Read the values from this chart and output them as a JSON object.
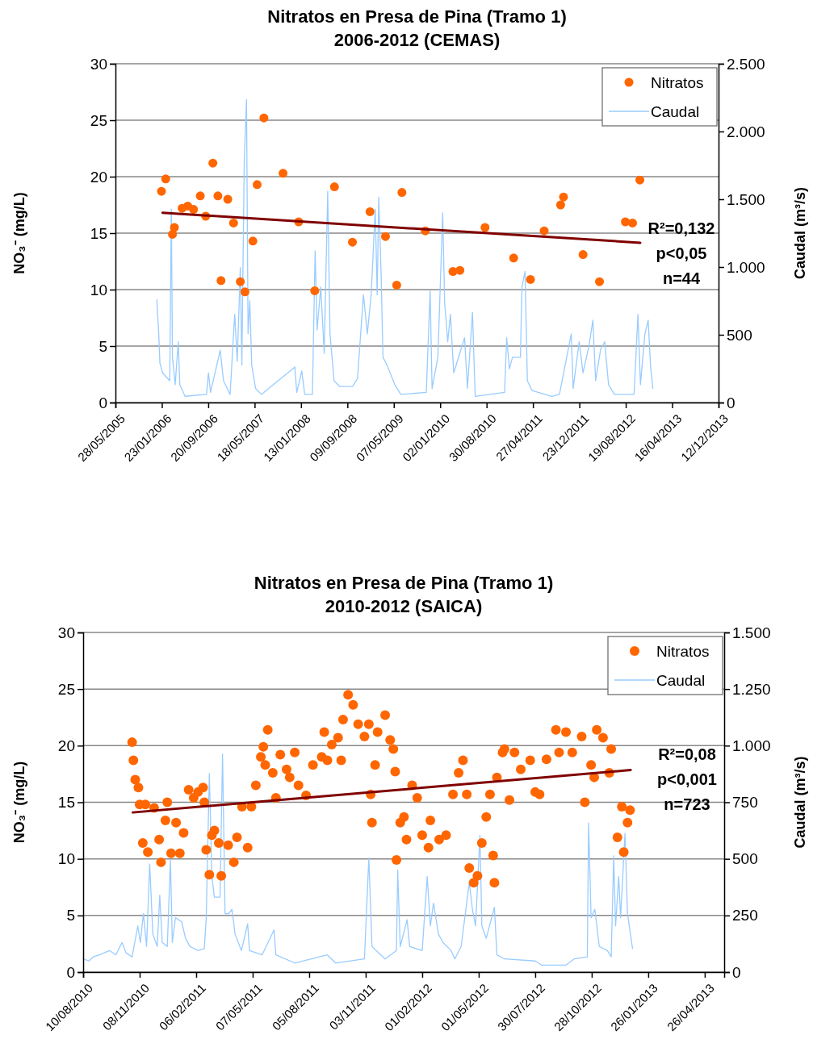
{
  "chart_data": [
    {
      "type": "scatter",
      "title": "Nitratos en Presa de Pina (Tramo 1)",
      "subtitle": "2006-2012 (CEMAS)",
      "ylabel": "NO₃⁻ (mg/L)",
      "y2label": "Caudal (m³/s)",
      "annotations": [
        "R²=0,132",
        "p<0,05",
        "n=44"
      ],
      "xlim": [
        "2005-05-28",
        "2013-12-12"
      ],
      "xticks": [
        {
          "value": "2005-05-28",
          "label": "28/05/2005"
        },
        {
          "value": "2006-01-23",
          "label": "23/01/2006"
        },
        {
          "value": "2006-09-20",
          "label": "20/09/2006"
        },
        {
          "value": "2007-05-18",
          "label": "18/05/2007"
        },
        {
          "value": "2008-01-13",
          "label": "13/01/2008"
        },
        {
          "value": "2008-09-09",
          "label": "09/09/2008"
        },
        {
          "value": "2009-05-07",
          "label": "07/05/2009"
        },
        {
          "value": "2010-01-02",
          "label": "02/01/2010"
        },
        {
          "value": "2010-08-30",
          "label": "30/08/2010"
        },
        {
          "value": "2011-04-27",
          "label": "27/04/2011"
        },
        {
          "value": "2011-12-23",
          "label": "23/12/2011"
        },
        {
          "value": "2012-08-19",
          "label": "19/08/2012"
        },
        {
          "value": "2013-04-16",
          "label": "16/04/2013"
        },
        {
          "value": "2013-12-12",
          "label": "12/12/2013"
        }
      ],
      "ylim": [
        0,
        30
      ],
      "yticks": [
        0,
        5,
        10,
        15,
        20,
        25,
        30
      ],
      "y2lim": [
        0,
        2500
      ],
      "y2ticks": [
        0,
        500,
        {
          "value": 1000,
          "label": "1.000"
        },
        {
          "value": 1500,
          "label": "1.500"
        },
        {
          "value": 2000,
          "label": "2.000"
        },
        {
          "value": 2500,
          "label": "2.500"
        }
      ],
      "grid": "y",
      "legend": "top right",
      "series": [
        {
          "name": "Nitratos",
          "color": "#ff6600",
          "marker": "circle",
          "x": [
            "2006-01-21",
            "2006-02-12",
            "2006-03-29",
            "2006-03-19",
            "2006-05-08",
            "2006-06-06",
            "2006-07-06",
            "2006-08-10",
            "2006-09-07",
            "2006-10-14",
            "2006-11-09",
            "2006-11-25",
            "2006-12-30",
            "2007-01-29",
            "2007-03-05",
            "2007-03-29",
            "2007-05-09",
            "2007-05-31",
            "2007-07-05",
            "2007-10-12",
            "2008-01-01",
            "2008-03-24",
            "2008-07-04",
            "2008-10-05",
            "2009-01-04",
            "2009-03-25",
            "2009-05-22",
            "2009-06-18",
            "2009-10-17",
            "2010-03-09",
            "2010-04-14",
            "2010-08-22",
            "2011-01-17",
            "2011-04-14",
            "2011-06-24",
            "2011-09-17",
            "2011-10-02",
            "2012-01-11",
            "2012-04-05",
            "2012-08-17",
            "2012-09-23",
            "2012-10-31"
          ],
          "values": [
            18.7,
            19.8,
            15.5,
            14.9,
            17.2,
            17.4,
            17.1,
            18.3,
            16.5,
            21.2,
            18.3,
            10.8,
            18.0,
            15.9,
            10.7,
            9.8,
            14.3,
            19.3,
            25.2,
            20.3,
            16.0,
            9.9,
            19.1,
            14.2,
            16.9,
            14.7,
            10.4,
            18.6,
            15.2,
            11.6,
            11.7,
            15.5,
            12.8,
            10.9,
            15.2,
            17.5,
            18.2,
            13.1,
            10.7,
            16.0,
            15.9,
            19.7
          ]
        },
        {
          "name": "Caudal",
          "type": "line",
          "axis": "y2",
          "color": "#99ccff",
          "line_style": "solid",
          "x": [
            "2005-12-28",
            "2006-01-07",
            "2006-01-13",
            "2006-01-27",
            "2006-03-05",
            "2006-03-13",
            "2006-03-19",
            "2006-04-02",
            "2006-04-18",
            "2006-04-26",
            "2006-05-23",
            "2006-09-11",
            "2006-09-21",
            "2006-10-02",
            "2006-11-21",
            "2006-12-08",
            "2007-01-11",
            "2007-02-04",
            "2007-02-17",
            "2007-03-05",
            "2007-03-13",
            "2007-03-25",
            "2007-04-06",
            "2007-04-14",
            "2007-04-23",
            "2007-05-03",
            "2007-05-23",
            "2007-06-22",
            "2007-12-12",
            "2007-12-22",
            "2008-01-17",
            "2008-02-01",
            "2008-03-12",
            "2008-03-26",
            "2008-04-05",
            "2008-04-24",
            "2008-05-12",
            "2008-05-30",
            "2008-06-11",
            "2008-07-02",
            "2008-08-01",
            "2008-10-05",
            "2008-10-31",
            "2008-12-01",
            "2008-12-21",
            "2009-01-10",
            "2009-01-31",
            "2009-02-10",
            "2009-02-18",
            "2009-03-02",
            "2009-03-12",
            "2009-04-02",
            "2009-05-12",
            "2009-06-12",
            "2009-10-22",
            "2009-11-11",
            "2009-11-21",
            "2009-12-21",
            "2010-01-15",
            "2010-01-25",
            "2010-02-10",
            "2010-02-24",
            "2010-03-13",
            "2010-05-08",
            "2010-05-23",
            "2010-06-18",
            "2010-07-02",
            "2010-12-01",
            "2010-12-12",
            "2010-12-26",
            "2011-01-11",
            "2011-02-21",
            "2011-03-01",
            "2011-03-17",
            "2011-03-29",
            "2011-04-22",
            "2011-08-02",
            "2011-09-11",
            "2011-11-11",
            "2011-11-21",
            "2011-12-22",
            "2012-01-11",
            "2012-02-11",
            "2012-03-02",
            "2012-03-16",
            "2012-04-11",
            "2012-05-02",
            "2012-05-22",
            "2012-06-21",
            "2012-10-01",
            "2012-10-21",
            "2012-11-03",
            "2012-11-26",
            "2012-12-13",
            "2012-12-25",
            "2013-01-06"
          ],
          "values": [
            760,
            507,
            291,
            219,
            161,
            1428,
            334,
            132,
            449,
            132,
            46,
            60,
            219,
            75,
            386,
            161,
            60,
            651,
            305,
            996,
            276,
            1760,
            2235,
            507,
            752,
            276,
            104,
            60,
            262,
            75,
            233,
            60,
            60,
            1120,
            536,
            852,
            363,
            1558,
            507,
            161,
            118,
            118,
            176,
            795,
            507,
            795,
            1428,
            795,
            1515,
            968,
            334,
            276,
            132,
            60,
            75,
            824,
            104,
            334,
            1400,
            737,
            449,
            651,
            219,
            478,
            104,
            665,
            46,
            75,
            478,
            248,
            334,
            334,
            852,
            968,
            161,
            89,
            46,
            60,
            507,
            104,
            449,
            219,
            420,
            608,
            161,
            392,
            449,
            132,
            60,
            60,
            651,
            132,
            507,
            608,
            276,
            104
          ]
        },
        {
          "type": "line",
          "color": "#800000",
          "line_style": "solid",
          "x": [
            "2006-01-27",
            "2012-11-02"
          ],
          "values": [
            16.8,
            14.15
          ]
        }
      ]
    },
    {
      "type": "scatter",
      "title": "Nitratos en Presa de Pina (Tramo 1)",
      "subtitle": "2010-2012 (SAICA)",
      "ylabel": "NO₃⁻ (mg/L)",
      "y2label": "Caudal (m³/s)",
      "annotations": [
        "R²=0,08",
        "p<0,001",
        "n=723"
      ],
      "xlim": [
        "2010-08-10",
        "2013-05-27"
      ],
      "xticks": [
        {
          "value": "2010-08-10",
          "label": "10/08/2010"
        },
        {
          "value": "2010-11-08",
          "label": "08/11/2010"
        },
        {
          "value": "2011-02-06",
          "label": "06/02/2011"
        },
        {
          "value": "2011-05-07",
          "label": "07/05/2011"
        },
        {
          "value": "2011-08-05",
          "label": "05/08/2011"
        },
        {
          "value": "2011-11-03",
          "label": "03/11/2011"
        },
        {
          "value": "2012-02-01",
          "label": "01/02/2012"
        },
        {
          "value": "2012-05-01",
          "label": "01/05/2012"
        },
        {
          "value": "2012-07-30",
          "label": "30/07/2012"
        },
        {
          "value": "2012-10-28",
          "label": "28/10/2012"
        },
        {
          "value": "2013-01-26",
          "label": "26/01/2013"
        },
        {
          "value": "2013-04-26",
          "label": "26/04/2013"
        }
      ],
      "ylim": [
        0,
        30
      ],
      "yticks": [
        0,
        5,
        10,
        15,
        20,
        25,
        30
      ],
      "y2lim": [
        0,
        1500
      ],
      "y2ticks": [
        0,
        250,
        500,
        750,
        {
          "value": 1000,
          "label": "1.000"
        },
        {
          "value": 1250,
          "label": "1.250"
        },
        {
          "value": 1500,
          "label": "1.500"
        }
      ],
      "grid": "y",
      "legend": "top right",
      "series": [
        {
          "name": "Nitratos",
          "color": "#ff6600",
          "marker": "circle",
          "x": [
            "2010-10-27",
            "2010-10-29",
            "2010-11-01",
            "2010-11-06",
            "2010-11-08",
            "2010-11-13",
            "2010-11-17",
            "2010-11-21",
            "2010-12-01",
            "2010-12-09",
            "2010-12-12",
            "2010-12-19",
            "2010-12-22",
            "2010-12-28",
            "2011-01-05",
            "2011-01-11",
            "2011-01-17",
            "2011-01-25",
            "2011-02-02",
            "2011-02-09",
            "2011-02-17",
            "2011-02-19",
            "2011-02-22",
            "2011-02-27",
            "2011-03-03",
            "2011-03-07",
            "2011-03-14",
            "2011-03-18",
            "2011-03-29",
            "2011-04-07",
            "2011-04-12",
            "2011-04-20",
            "2011-04-29",
            "2011-05-05",
            "2011-05-12",
            "2011-05-20",
            "2011-05-24",
            "2011-05-27",
            "2011-05-31",
            "2011-06-08",
            "2011-06-13",
            "2011-06-20",
            "2011-06-30",
            "2011-07-05",
            "2011-07-13",
            "2011-07-19",
            "2011-07-31",
            "2011-08-11",
            "2011-08-25",
            "2011-08-29",
            "2011-09-03",
            "2011-09-10",
            "2011-09-20",
            "2011-09-25",
            "2011-09-28",
            "2011-10-06",
            "2011-10-14",
            "2011-10-22",
            "2011-11-01",
            "2011-11-08",
            "2011-11-11",
            "2011-11-13",
            "2011-11-18",
            "2011-11-22",
            "2011-12-04",
            "2011-12-12",
            "2011-12-17",
            "2011-12-20",
            "2011-12-22",
            "2011-12-28",
            "2012-01-03",
            "2012-01-07",
            "2012-01-16",
            "2012-01-24",
            "2012-02-01",
            "2012-02-11",
            "2012-02-14",
            "2012-02-28",
            "2012-03-10",
            "2012-03-21",
            "2012-03-30",
            "2012-04-06",
            "2012-04-12",
            "2012-04-16",
            "2012-04-23",
            "2012-04-29",
            "2012-05-06",
            "2012-05-13",
            "2012-05-19",
            "2012-05-24",
            "2012-05-26",
            "2012-05-30",
            "2012-06-08",
            "2012-06-11",
            "2012-06-19",
            "2012-06-27",
            "2012-07-07",
            "2012-07-22",
            "2012-07-30",
            "2012-08-06",
            "2012-08-17",
            "2012-09-01",
            "2012-09-06",
            "2012-09-17",
            "2012-09-27",
            "2012-10-12",
            "2012-10-17",
            "2012-10-27",
            "2012-11-01",
            "2012-11-05",
            "2012-11-15",
            "2012-11-25",
            "2012-11-28",
            "2012-12-08",
            "2012-12-15",
            "2012-12-18",
            "2012-12-24",
            "2012-12-28"
          ],
          "values": [
            20.3,
            18.7,
            17.0,
            16.3,
            14.8,
            11.4,
            14.8,
            10.6,
            14.5,
            11.7,
            9.7,
            13.4,
            15.0,
            10.5,
            13.2,
            10.5,
            12.3,
            16.1,
            15.4,
            15.9,
            16.3,
            15.0,
            10.8,
            8.6,
            12.1,
            12.5,
            11.4,
            8.5,
            11.2,
            9.7,
            11.9,
            14.6,
            11.0,
            14.6,
            16.5,
            19.0,
            19.9,
            18.3,
            21.4,
            17.6,
            15.4,
            19.2,
            17.9,
            17.2,
            19.4,
            16.5,
            15.6,
            18.3,
            19.0,
            21.2,
            18.7,
            20.1,
            20.7,
            18.7,
            22.3,
            24.5,
            23.6,
            21.9,
            20.8,
            21.9,
            15.7,
            13.2,
            18.3,
            21.2,
            22.7,
            20.5,
            19.7,
            17.7,
            9.9,
            13.2,
            13.7,
            11.7,
            16.5,
            15.4,
            12.1,
            11.0,
            13.4,
            11.7,
            12.1,
            15.7,
            17.6,
            18.7,
            15.7,
            9.2,
            7.9,
            8.5,
            11.4,
            13.7,
            15.7,
            10.3,
            7.9,
            17.2,
            19.4,
            19.7,
            15.2,
            19.4,
            17.9,
            18.7,
            15.9,
            15.7,
            18.8,
            21.4,
            19.4,
            21.2,
            19.4,
            20.8,
            15.0,
            18.3,
            17.2,
            21.4,
            20.7,
            17.6,
            19.7,
            11.9,
            14.6,
            10.6,
            13.2,
            14.3
          ]
        },
        {
          "name": "Caudal",
          "type": "line",
          "axis": "y2",
          "color": "#99ccff",
          "line_style": "solid",
          "x": [
            "2010-08-10",
            "2010-08-19",
            "2010-08-26",
            "2010-09-05",
            "2010-09-21",
            "2010-10-01",
            "2010-10-11",
            "2010-10-17",
            "2010-10-27",
            "2010-11-05",
            "2010-11-09",
            "2010-11-14",
            "2010-11-19",
            "2010-11-24",
            "2010-11-29",
            "2010-12-06",
            "2010-12-10",
            "2010-12-14",
            "2010-12-22",
            "2010-12-27",
            "2010-12-30",
            "2011-01-04",
            "2011-01-14",
            "2011-01-20",
            "2011-01-27",
            "2011-02-09",
            "2011-02-19",
            "2011-02-22",
            "2011-02-27",
            "2011-03-03",
            "2011-03-07",
            "2011-03-16",
            "2011-03-20",
            "2011-03-24",
            "2011-03-30",
            "2011-04-04",
            "2011-04-09",
            "2011-04-19",
            "2011-04-29",
            "2011-05-02",
            "2011-05-22",
            "2011-06-10",
            "2011-06-13",
            "2011-07-13",
            "2011-09-03",
            "2011-09-16",
            "2011-11-01",
            "2011-11-08",
            "2011-11-13",
            "2011-12-04",
            "2011-12-22",
            "2011-12-24",
            "2011-12-28",
            "2012-01-08",
            "2012-01-12",
            "2012-02-01",
            "2012-02-09",
            "2012-02-14",
            "2012-02-19",
            "2012-02-27",
            "2012-03-05",
            "2012-03-18",
            "2012-03-24",
            "2012-04-03",
            "2012-04-16",
            "2012-04-21",
            "2012-04-26",
            "2012-05-03",
            "2012-05-06",
            "2012-05-13",
            "2012-05-26",
            "2012-05-30",
            "2012-06-11",
            "2012-07-30",
            "2012-08-09",
            "2012-09-17",
            "2012-09-30",
            "2012-10-21",
            "2012-10-23",
            "2012-10-27",
            "2012-11-02",
            "2012-11-09",
            "2012-11-22",
            "2012-11-28",
            "2012-12-02",
            "2012-12-05",
            "2012-12-10",
            "2012-12-13",
            "2012-12-20",
            "2012-12-24",
            "2013-01-01"
          ],
          "values": [
            58,
            49,
            67,
            76,
            95,
            76,
            131,
            86,
            67,
            204,
            131,
            258,
            113,
            477,
            167,
            113,
            340,
            131,
            113,
            495,
            131,
            240,
            222,
            149,
            113,
            95,
            104,
            240,
            877,
            422,
            331,
            331,
            963,
            258,
            258,
            277,
            167,
            95,
            213,
            95,
            76,
            186,
            76,
            40,
            76,
            40,
            58,
            504,
            113,
            58,
            95,
            450,
            113,
            231,
            113,
            95,
            422,
            204,
            304,
            167,
            131,
            95,
            58,
            113,
            395,
            277,
            204,
            604,
            204,
            149,
            286,
            76,
            58,
            49,
            31,
            31,
            58,
            67,
            659,
            240,
            277,
            113,
            95,
            67,
            513,
            204,
            422,
            240,
            613,
            258,
            104
          ]
        },
        {
          "type": "line",
          "color": "#800000",
          "line_style": "solid",
          "x": [
            "2010-10-28",
            "2012-12-29"
          ],
          "values": [
            14.1,
            17.85
          ]
        }
      ]
    }
  ]
}
